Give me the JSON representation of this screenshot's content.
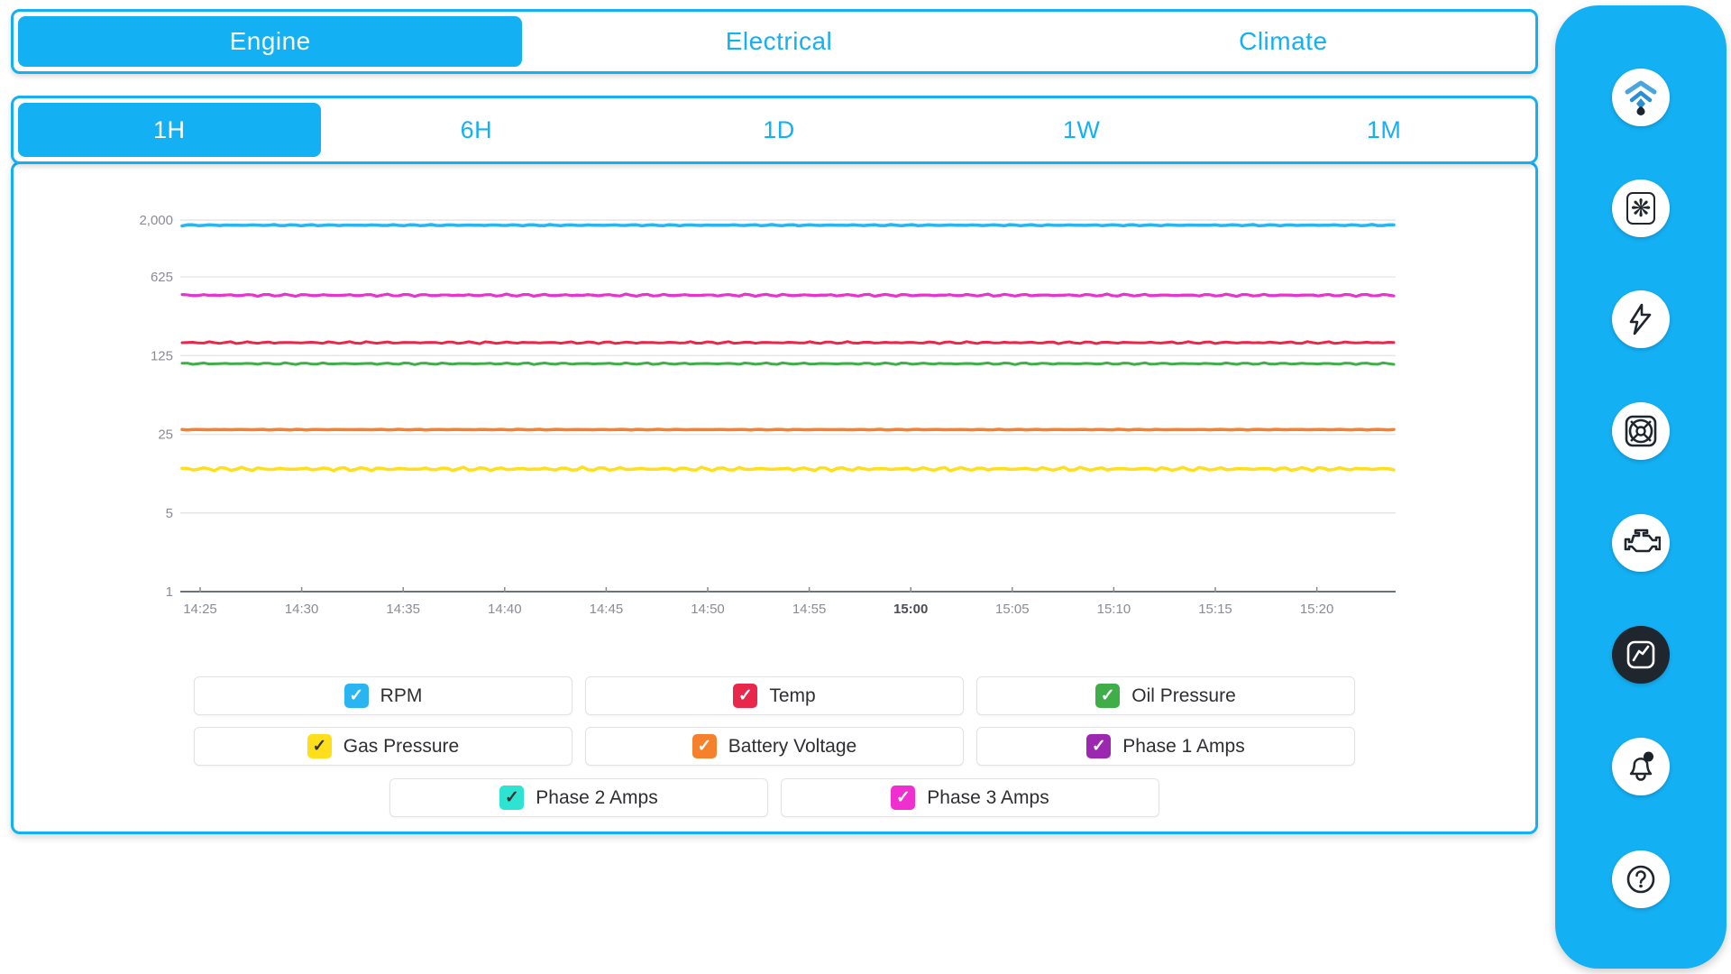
{
  "app": {
    "accent": "#14b0f4",
    "active_icon_bg": "#20262e",
    "check_glyph": "✓"
  },
  "tabs": {
    "items": [
      {
        "label": "Engine",
        "selected": true
      },
      {
        "label": "Electrical",
        "selected": false
      },
      {
        "label": "Climate",
        "selected": false
      }
    ]
  },
  "time_ranges": {
    "items": [
      {
        "label": "1H",
        "selected": true
      },
      {
        "label": "6H",
        "selected": false
      },
      {
        "label": "1D",
        "selected": false
      },
      {
        "label": "1W",
        "selected": false
      },
      {
        "label": "1M",
        "selected": false
      }
    ]
  },
  "chart_data": {
    "type": "line",
    "title": "",
    "xlabel": "",
    "ylabel": "",
    "y_scale": "log-base-5",
    "ylim": [
      1,
      2000
    ],
    "grid": true,
    "yticks": [
      {
        "value": 1,
        "label": "1"
      },
      {
        "value": 5,
        "label": "5"
      },
      {
        "value": 25,
        "label": "25"
      },
      {
        "value": 125,
        "label": "125"
      },
      {
        "value": 625,
        "label": "625"
      },
      {
        "value": 2000,
        "label": "2,000"
      }
    ],
    "xticks": [
      "14:25",
      "14:30",
      "14:35",
      "14:40",
      "14:45",
      "14:50",
      "14:55",
      "15:00",
      "15:05",
      "15:10",
      "15:15",
      "15:20"
    ],
    "bold_xtick": "15:00",
    "series": [
      {
        "name": "RPM",
        "color": "#29b5f2",
        "value": 1800,
        "width": 3.5,
        "noise": 0.8,
        "seed": 1
      },
      {
        "name": "Temp",
        "color": "#e8274b",
        "value": 163,
        "width": 3,
        "noise": 1.3,
        "seed": 2
      },
      {
        "name": "Oil Pressure",
        "color": "#3fae49",
        "value": 106,
        "width": 3,
        "noise": 1.1,
        "seed": 3
      },
      {
        "name": "Gas Pressure",
        "color": "#ffdf1b",
        "value": 12.3,
        "width": 3.5,
        "noise": 2.2,
        "seed": 4
      },
      {
        "name": "Battery Voltage",
        "color": "#f5812c",
        "value": 27.5,
        "width": 3.5,
        "noise": 0.4,
        "seed": 5
      },
      {
        "name": "Phase 1 Amps",
        "color": "#9c27b0",
        "value": 430,
        "width": 3,
        "noise": 1.4,
        "seed": 9
      },
      {
        "name": "Phase 2 Amps",
        "color": "#2fe3d2",
        "value": 430,
        "width": 3,
        "noise": 1.4,
        "seed": 9
      },
      {
        "name": "Phase 3 Amps",
        "color": "#ef2fd0",
        "value": 430,
        "width": 3,
        "noise": 1.4,
        "seed": 9
      }
    ]
  },
  "legend": {
    "rows": [
      [
        {
          "label": "RPM",
          "color": "#29b5f2",
          "check": "#ffffff",
          "checked": true
        },
        {
          "label": "Temp",
          "color": "#e8274b",
          "check": "#ffffff",
          "checked": true
        },
        {
          "label": "Oil Pressure",
          "color": "#3fae49",
          "check": "#ffffff",
          "checked": true
        }
      ],
      [
        {
          "label": "Gas Pressure",
          "color": "#ffdf1b",
          "check": "#333333",
          "checked": true
        },
        {
          "label": "Battery Voltage",
          "color": "#f5812c",
          "check": "#ffffff",
          "checked": true
        },
        {
          "label": "Phase 1 Amps",
          "color": "#9c27b0",
          "check": "#ffffff",
          "checked": true
        }
      ],
      [
        {
          "label": "Phase 2 Amps",
          "color": "#2fe3d2",
          "check": "#333333",
          "checked": true
        },
        {
          "label": "Phase 3 Amps",
          "color": "#ef2fd0",
          "check": "#ffffff",
          "checked": true
        }
      ]
    ]
  },
  "sidebar": {
    "icons": [
      {
        "name": "brand-logo",
        "active": false
      },
      {
        "name": "fan",
        "active": false
      },
      {
        "name": "electrical-bolt",
        "active": false
      },
      {
        "name": "fan-grille",
        "active": false
      },
      {
        "name": "engine",
        "active": false
      },
      {
        "name": "trend-chart",
        "active": true,
        "has_badge": false
      },
      {
        "name": "alerts-bell",
        "active": false,
        "has_badge": true
      },
      {
        "name": "help",
        "active": false
      }
    ]
  }
}
